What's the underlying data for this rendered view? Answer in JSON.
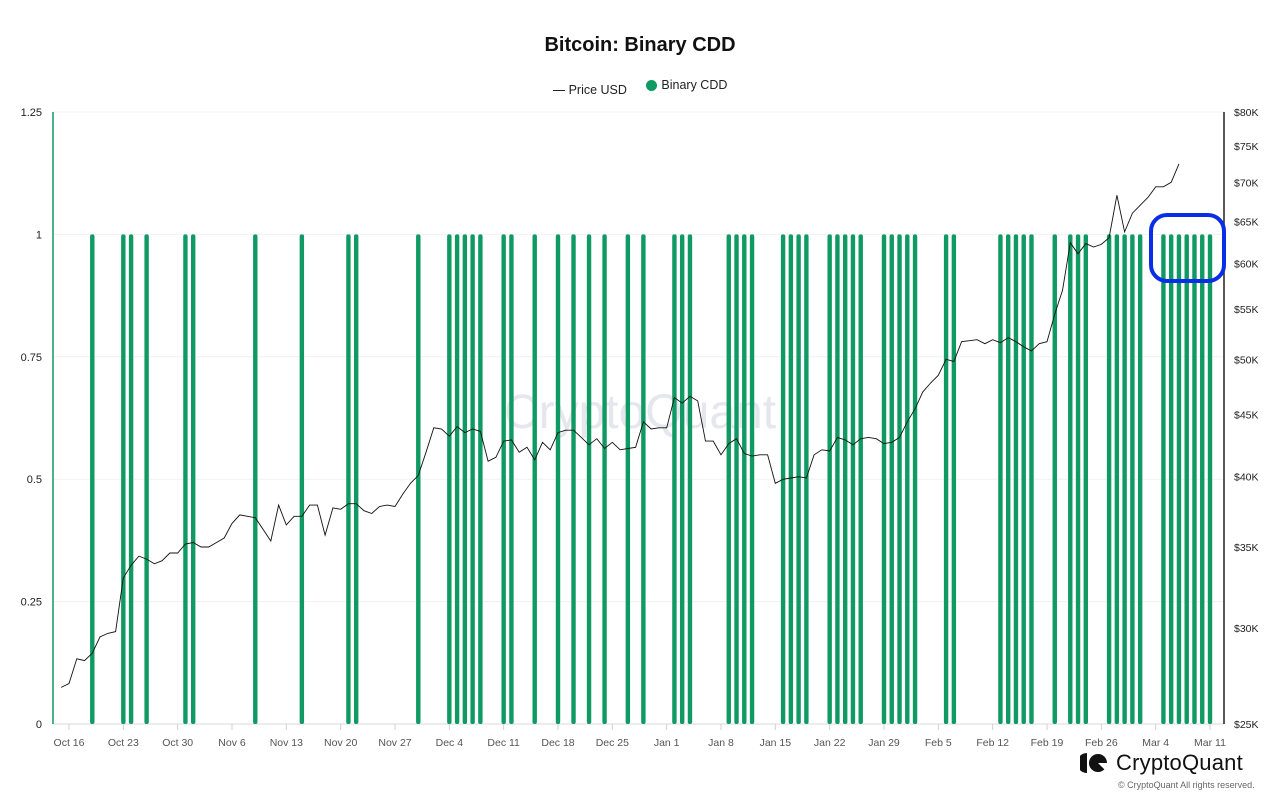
{
  "title": "Bitcoin: Binary CDD",
  "legend": {
    "price_label": "Price USD",
    "cdd_label": "Binary CDD",
    "cdd_color": "#0e9a62",
    "price_color": "#111111"
  },
  "brand": {
    "name": "CryptoQuant",
    "copyright": "© CryptoQuant All rights reserved."
  },
  "annotation": {
    "type": "rounded-rectangle",
    "color": "#0a2ee8",
    "note": "highlights consecutive Binary CDD = 1 in early March"
  },
  "chart_data": {
    "type": "bar+line",
    "title": "Bitcoin: Binary CDD",
    "xlabel": "",
    "ylabel_left": "Binary CDD",
    "ylabel_right": "Price USD",
    "left_axis": {
      "ticks": [
        "0",
        "0.25",
        "0.5",
        "0.75",
        "1",
        "1.25"
      ],
      "range": [
        0,
        1.25
      ]
    },
    "right_axis": {
      "scale": "log",
      "ticks": [
        "$25K",
        "$30K",
        "$35K",
        "$40K",
        "$45K",
        "$50K",
        "$55K",
        "$60K",
        "$65K",
        "$70K",
        "$75K",
        "$80K"
      ],
      "range": [
        25000,
        80000
      ]
    },
    "x_ticks": [
      "Oct 16",
      "Oct 23",
      "Oct 30",
      "Nov 6",
      "Nov 13",
      "Nov 20",
      "Nov 27",
      "Dec 4",
      "Dec 11",
      "Dec 18",
      "Dec 25",
      "Jan 1",
      "Jan 8",
      "Jan 15",
      "Jan 22",
      "Jan 29",
      "Feb 5",
      "Feb 12",
      "Feb 19",
      "Feb 26",
      "Mar 4",
      "Mar 11"
    ],
    "x_start": "Oct 16",
    "x_days": 147,
    "grid": true,
    "legend_position": "top",
    "series": [
      {
        "name": "Binary CDD",
        "type": "bar",
        "axis": "left",
        "description": "days (offset from Oct 16) where Binary CDD = 1; all other days = 0",
        "days_with_value_1": [
          3,
          7,
          8,
          10,
          15,
          16,
          24,
          30,
          36,
          37,
          45,
          49,
          50,
          51,
          52,
          53,
          56,
          57,
          60,
          63,
          65,
          67,
          69,
          72,
          74,
          78,
          79,
          80,
          85,
          86,
          87,
          88,
          92,
          93,
          94,
          95,
          98,
          99,
          100,
          101,
          102,
          105,
          106,
          107,
          108,
          109,
          113,
          114,
          120,
          121,
          122,
          123,
          124,
          127,
          129,
          130,
          131,
          134,
          135,
          136,
          137,
          138,
          141,
          142,
          143,
          144,
          145,
          146,
          147
        ]
      },
      {
        "name": "Price USD",
        "type": "line",
        "axis": "right",
        "points": [
          [
            -1,
            26800
          ],
          [
            0,
            27000
          ],
          [
            1,
            28300
          ],
          [
            2,
            28200
          ],
          [
            3,
            28600
          ],
          [
            4,
            29500
          ],
          [
            5,
            29700
          ],
          [
            6,
            29800
          ],
          [
            7,
            33000
          ],
          [
            8,
            33800
          ],
          [
            9,
            34400
          ],
          [
            10,
            34200
          ],
          [
            11,
            33900
          ],
          [
            12,
            34100
          ],
          [
            13,
            34600
          ],
          [
            14,
            34600
          ],
          [
            15,
            35200
          ],
          [
            16,
            35300
          ],
          [
            17,
            35000
          ],
          [
            18,
            35000
          ],
          [
            19,
            35300
          ],
          [
            20,
            35600
          ],
          [
            21,
            36600
          ],
          [
            22,
            37200
          ],
          [
            23,
            37100
          ],
          [
            24,
            37000
          ],
          [
            25,
            36200
          ],
          [
            26,
            35400
          ],
          [
            27,
            37900
          ],
          [
            28,
            36500
          ],
          [
            29,
            37100
          ],
          [
            30,
            37100
          ],
          [
            31,
            37900
          ],
          [
            32,
            37900
          ],
          [
            33,
            35800
          ],
          [
            34,
            37700
          ],
          [
            35,
            37600
          ],
          [
            36,
            38000
          ],
          [
            37,
            38000
          ],
          [
            38,
            37500
          ],
          [
            39,
            37300
          ],
          [
            40,
            37800
          ],
          [
            41,
            37900
          ],
          [
            42,
            37800
          ],
          [
            43,
            38700
          ],
          [
            44,
            39500
          ],
          [
            45,
            40100
          ],
          [
            46,
            41900
          ],
          [
            47,
            43900
          ],
          [
            48,
            43800
          ],
          [
            49,
            43200
          ],
          [
            50,
            44000
          ],
          [
            51,
            43500
          ],
          [
            52,
            43800
          ],
          [
            53,
            43600
          ],
          [
            54,
            41200
          ],
          [
            55,
            41500
          ],
          [
            56,
            42800
          ],
          [
            57,
            42900
          ],
          [
            58,
            41900
          ],
          [
            59,
            42300
          ],
          [
            60,
            41300
          ],
          [
            61,
            42700
          ],
          [
            62,
            42100
          ],
          [
            63,
            43500
          ],
          [
            64,
            43700
          ],
          [
            65,
            43700
          ],
          [
            66,
            43100
          ],
          [
            67,
            42500
          ],
          [
            68,
            43000
          ],
          [
            69,
            42200
          ],
          [
            70,
            42700
          ],
          [
            71,
            42100
          ],
          [
            72,
            42200
          ],
          [
            73,
            42300
          ],
          [
            74,
            44400
          ],
          [
            75,
            43800
          ],
          [
            76,
            43900
          ],
          [
            77,
            43900
          ],
          [
            78,
            46500
          ],
          [
            79,
            46000
          ],
          [
            80,
            46600
          ],
          [
            81,
            46200
          ],
          [
            82,
            42800
          ],
          [
            83,
            42800
          ],
          [
            84,
            41700
          ],
          [
            85,
            42600
          ],
          [
            86,
            43000
          ],
          [
            87,
            41800
          ],
          [
            88,
            41600
          ],
          [
            89,
            41700
          ],
          [
            90,
            41700
          ],
          [
            91,
            39500
          ],
          [
            92,
            39800
          ],
          [
            93,
            39900
          ],
          [
            94,
            40000
          ],
          [
            95,
            39900
          ],
          [
            96,
            41700
          ],
          [
            97,
            42100
          ],
          [
            98,
            42000
          ],
          [
            99,
            43100
          ],
          [
            100,
            42900
          ],
          [
            101,
            42500
          ],
          [
            102,
            43000
          ],
          [
            103,
            43100
          ],
          [
            104,
            43000
          ],
          [
            105,
            42600
          ],
          [
            106,
            42700
          ],
          [
            107,
            43100
          ],
          [
            108,
            44400
          ],
          [
            109,
            45500
          ],
          [
            110,
            47000
          ],
          [
            111,
            47800
          ],
          [
            112,
            48500
          ],
          [
            113,
            50000
          ],
          [
            114,
            49800
          ],
          [
            115,
            51700
          ],
          [
            116,
            51800
          ],
          [
            117,
            51900
          ],
          [
            118,
            51500
          ],
          [
            119,
            51900
          ],
          [
            120,
            51600
          ],
          [
            121,
            52100
          ],
          [
            122,
            51700
          ],
          [
            123,
            51200
          ],
          [
            124,
            50800
          ],
          [
            125,
            51500
          ],
          [
            126,
            51700
          ],
          [
            127,
            54500
          ],
          [
            128,
            57000
          ],
          [
            129,
            62400
          ],
          [
            130,
            61100
          ],
          [
            131,
            62300
          ],
          [
            132,
            61900
          ],
          [
            133,
            62200
          ],
          [
            134,
            63000
          ],
          [
            135,
            68300
          ],
          [
            136,
            63700
          ],
          [
            137,
            66000
          ],
          [
            138,
            67000
          ],
          [
            139,
            68000
          ],
          [
            140,
            69400
          ],
          [
            141,
            69400
          ],
          [
            142,
            70000
          ],
          [
            143,
            72500
          ]
        ]
      }
    ]
  }
}
